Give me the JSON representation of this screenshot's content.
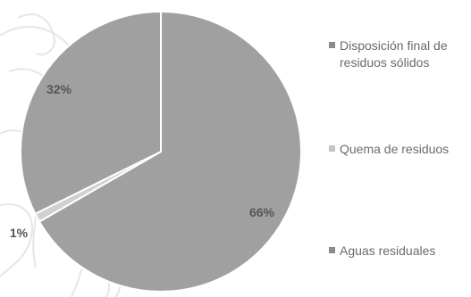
{
  "chart_data": {
    "type": "pie",
    "title": "",
    "slices": [
      {
        "name": "Disposición final de residuos sólidos",
        "value": 66,
        "label": "66%",
        "color": "#a0a0a0"
      },
      {
        "name": "Quema de residuos",
        "value": 1,
        "label": "1%",
        "color": "#d0d0d0"
      },
      {
        "name": "Aguas residuales",
        "value": 32,
        "label": "32%",
        "color": "#a0a0a0"
      }
    ],
    "legend_position": "right"
  },
  "legend": {
    "items": [
      {
        "label": "Disposición final de residuos sólidos",
        "color": "#8a8a8a"
      },
      {
        "label": "Quema de residuos",
        "color": "#c4c4c4"
      },
      {
        "label": "Aguas residuales",
        "color": "#8a8a8a"
      }
    ]
  }
}
